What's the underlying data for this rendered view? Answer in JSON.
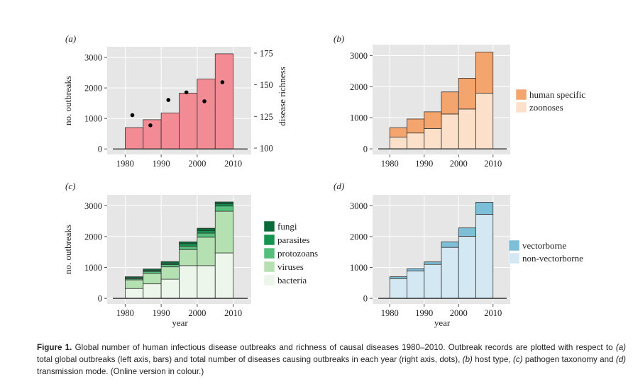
{
  "colors": {
    "panel_bg": "#e6e6e6",
    "grid": "#ffffff",
    "total": "#f28b94",
    "human_specific": "#f4a46d",
    "zoonoses": "#fde0c9",
    "fungi": "#0b6a39",
    "parasites": "#16934f",
    "protozoans": "#56bf7c",
    "viruses": "#b5e0b2",
    "bacteria": "#edf6ea",
    "vectorborne": "#7ebfd8",
    "non_vectorborne": "#d3e8f2",
    "dots": "#000000"
  },
  "chart_data": [
    {
      "id": "a",
      "panel_label": "(a)",
      "type": "bar",
      "categories": [
        1980,
        1985,
        1990,
        1995,
        2000,
        2005
      ],
      "series": [
        {
          "values": [
            700,
            960,
            1180,
            1830,
            2290,
            3120
          ]
        }
      ],
      "secondary_series": {
        "type": "scatter",
        "x": [
          1982,
          1987,
          1992,
          1997,
          2002,
          2007
        ],
        "values": [
          126,
          118,
          138,
          144,
          137,
          152
        ]
      },
      "xlabel": "",
      "ylabel": "no. outbreaks",
      "y2label": "disease richness",
      "xticks": [
        1980,
        1990,
        2000,
        2010
      ],
      "yticks": [
        0,
        1000,
        2000,
        3000
      ],
      "y2ticks": [
        100,
        125,
        150,
        175
      ],
      "xlim": [
        1975,
        2015
      ],
      "ylim": [
        -180,
        3350
      ],
      "y2lim": [
        95,
        180
      ],
      "grid": true
    },
    {
      "id": "b",
      "panel_label": "(b)",
      "type": "bar",
      "stacked": true,
      "categories": [
        1980,
        1985,
        1990,
        1995,
        2000,
        2005
      ],
      "series": [
        {
          "name": "zoonoses",
          "values": [
            380,
            510,
            650,
            1120,
            1280,
            1790
          ]
        },
        {
          "name": "human specific",
          "values": [
            300,
            450,
            540,
            710,
            990,
            1320
          ]
        }
      ],
      "xlabel": "",
      "ylabel": "",
      "xticks": [
        1980,
        1990,
        2000,
        2010
      ],
      "yticks": [
        0,
        1000,
        2000,
        3000
      ],
      "xlim": [
        1975,
        2015
      ],
      "ylim": [
        -180,
        3350
      ],
      "legend": [
        "human specific",
        "zoonoses"
      ],
      "legend_position": "right",
      "grid": true
    },
    {
      "id": "c",
      "panel_label": "(c)",
      "type": "bar",
      "stacked": true,
      "categories": [
        1980,
        1985,
        1990,
        1995,
        2000,
        2005
      ],
      "series": [
        {
          "name": "bacteria",
          "values": [
            320,
            470,
            620,
            1060,
            1060,
            1470
          ]
        },
        {
          "name": "viruses",
          "values": [
            280,
            340,
            400,
            520,
            920,
            1350
          ]
        },
        {
          "name": "protozoans",
          "values": [
            40,
            60,
            70,
            110,
            130,
            170
          ]
        },
        {
          "name": "parasites",
          "values": [
            20,
            40,
            50,
            80,
            80,
            70
          ]
        },
        {
          "name": "fungi",
          "values": [
            40,
            40,
            50,
            60,
            80,
            60
          ]
        }
      ],
      "xlabel": "year",
      "ylabel": "no. outbreaks",
      "xticks": [
        1980,
        1990,
        2000,
        2010
      ],
      "yticks": [
        0,
        1000,
        2000,
        3000
      ],
      "xlim": [
        1975,
        2015
      ],
      "ylim": [
        -180,
        3350
      ],
      "legend": [
        "fungi",
        "parasites",
        "protozoans",
        "viruses",
        "bacteria"
      ],
      "legend_position": "right",
      "grid": true
    },
    {
      "id": "d",
      "panel_label": "(d)",
      "type": "bar",
      "stacked": true,
      "categories": [
        1980,
        1985,
        1990,
        1995,
        2000,
        2005
      ],
      "series": [
        {
          "name": "non-vectorborne",
          "values": [
            640,
            890,
            1100,
            1650,
            2010,
            2720
          ]
        },
        {
          "name": "vectorborne",
          "values": [
            60,
            70,
            80,
            180,
            270,
            390
          ]
        }
      ],
      "xlabel": "year",
      "ylabel": "",
      "xticks": [
        1980,
        1990,
        2000,
        2010
      ],
      "yticks": [
        0,
        1000,
        2000,
        3000
      ],
      "xlim": [
        1975,
        2015
      ],
      "ylim": [
        -180,
        3350
      ],
      "legend": [
        "vectorborne",
        "non-vectorborne"
      ],
      "legend_position": "right",
      "grid": true
    }
  ],
  "caption": {
    "label": "Figure 1.",
    "parts": [
      {
        "t": " Global number of human infectious disease outbreaks and richness of causal diseases 1980–2010. Outbreak records are plotted with respect to "
      },
      {
        "t": "(a)",
        "i": true
      },
      {
        "t": " total global outbreaks (left axis, bars) and total number of diseases causing outbreaks in each year (right axis, dots), "
      },
      {
        "t": "(b)",
        "i": true
      },
      {
        "t": " host type, "
      },
      {
        "t": "(c)",
        "i": true
      },
      {
        "t": " pathogen taxonomy and "
      },
      {
        "t": "(d)",
        "i": true
      },
      {
        "t": " transmission mode. (Online version in colour.)"
      }
    ]
  }
}
